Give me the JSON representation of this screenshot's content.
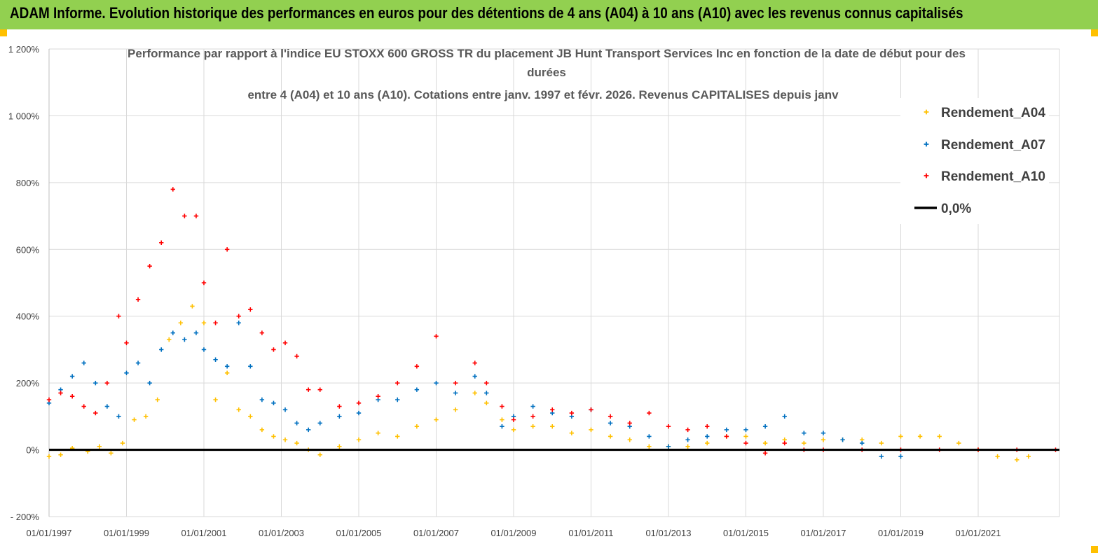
{
  "banner": {
    "title": "ADAM Informe. Evolution historique des performances en euros pour des détentions de 4 ans (A04) à 10 ans (A10) avec les revenus connus capitalisés"
  },
  "chart_data": {
    "type": "scatter",
    "title_lines": [
      "Performance par rapport à l'indice EU STOXX 600 GROSS TR  du placement JB Hunt Transport Services  Inc en  fonction de la date de début pour des",
      "durées",
      "entre 4 (A04) et 10 ans (A10).  Cotations entre janv. 1997 et févr.  2026. Revenus CAPITALISES depuis janv"
    ],
    "xlabel": "",
    "ylabel": "",
    "xlim": [
      1997.0,
      2023.1
    ],
    "ylim": [
      -200,
      1200
    ],
    "y_ticks": [
      -200,
      0,
      200,
      400,
      600,
      800,
      1000,
      1200
    ],
    "y_tick_labels": [
      "- 200%",
      "0%",
      "200%",
      "400%",
      "600%",
      "800%",
      "1 000%",
      "1 200%"
    ],
    "x_ticks": [
      1997,
      1999,
      2001,
      2003,
      2005,
      2007,
      2009,
      2011,
      2013,
      2015,
      2017,
      2019,
      2021
    ],
    "x_tick_labels": [
      "01/01/1997",
      "01/01/1999",
      "01/01/2001",
      "01/01/2003",
      "01/01/2005",
      "01/01/2007",
      "01/01/2009",
      "01/01/2011",
      "01/01/2013",
      "01/01/2015",
      "01/01/2017",
      "01/01/2019",
      "01/01/2021"
    ],
    "legend_position": "right",
    "series": [
      {
        "name": "Rendement_A04",
        "color": "#ffc000",
        "marker": "plus",
        "x": [
          1997.0,
          1997.3,
          1997.6,
          1998.0,
          1998.3,
          1998.6,
          1998.9,
          1999.2,
          1999.5,
          1999.8,
          2000.1,
          2000.4,
          2000.7,
          2001.0,
          2001.3,
          2001.6,
          2001.9,
          2002.2,
          2002.5,
          2002.8,
          2003.1,
          2003.4,
          2003.7,
          2004.0,
          2004.5,
          2005.0,
          2005.5,
          2006.0,
          2006.5,
          2007.0,
          2007.5,
          2008.0,
          2008.3,
          2008.7,
          2009.0,
          2009.5,
          2010.0,
          2010.5,
          2011.0,
          2011.5,
          2012.0,
          2012.5,
          2013.0,
          2013.5,
          2014.0,
          2014.5,
          2015.0,
          2015.5,
          2016.0,
          2016.5,
          2017.0,
          2017.5,
          2018.0,
          2018.5,
          2019.0,
          2019.5,
          2020.0,
          2020.5,
          2021.0,
          2021.5,
          2022.0,
          2022.3
        ],
        "y": [
          -20,
          -15,
          5,
          -5,
          10,
          -10,
          20,
          90,
          100,
          150,
          330,
          380,
          430,
          380,
          150,
          230,
          120,
          100,
          60,
          40,
          30,
          20,
          0,
          -15,
          10,
          30,
          50,
          40,
          70,
          90,
          120,
          170,
          140,
          90,
          60,
          70,
          70,
          50,
          60,
          40,
          30,
          10,
          10,
          10,
          20,
          40,
          40,
          20,
          30,
          20,
          30,
          30,
          30,
          20,
          40,
          40,
          40,
          20,
          0,
          -20,
          -30,
          -20
        ]
      },
      {
        "name": "Rendement_A07",
        "color": "#0070c0",
        "marker": "plus",
        "x": [
          1997.0,
          1997.3,
          1997.6,
          1997.9,
          1998.2,
          1998.5,
          1998.8,
          1999.0,
          1999.3,
          1999.6,
          1999.9,
          2000.2,
          2000.5,
          2000.8,
          2001.0,
          2001.3,
          2001.6,
          2001.9,
          2002.2,
          2002.5,
          2002.8,
          2003.1,
          2003.4,
          2003.7,
          2004.0,
          2004.5,
          2005.0,
          2005.5,
          2006.0,
          2006.5,
          2007.0,
          2007.5,
          2008.0,
          2008.3,
          2008.7,
          2009.0,
          2009.5,
          2010.0,
          2010.5,
          2011.0,
          2011.5,
          2012.0,
          2012.5,
          2013.0,
          2013.5,
          2014.0,
          2014.5,
          2015.0,
          2015.5,
          2016.0,
          2016.5,
          2017.0,
          2017.5,
          2018.0,
          2018.5,
          2019.0
        ],
        "y": [
          140,
          180,
          220,
          260,
          200,
          130,
          100,
          230,
          260,
          200,
          300,
          350,
          330,
          350,
          300,
          270,
          250,
          380,
          250,
          150,
          140,
          120,
          80,
          60,
          80,
          100,
          110,
          150,
          150,
          180,
          200,
          170,
          220,
          170,
          70,
          100,
          130,
          110,
          100,
          120,
          80,
          70,
          40,
          10,
          30,
          40,
          60,
          60,
          70,
          100,
          50,
          50,
          30,
          20,
          -20,
          -20
        ]
      },
      {
        "name": "Rendement_A10",
        "color": "#ff0000",
        "marker": "plus",
        "x": [
          1997.0,
          1997.3,
          1997.6,
          1997.9,
          1998.2,
          1998.5,
          1998.8,
          1999.0,
          1999.3,
          1999.6,
          1999.9,
          2000.2,
          2000.5,
          2000.8,
          2001.0,
          2001.3,
          2001.6,
          2001.9,
          2002.2,
          2002.5,
          2002.8,
          2003.1,
          2003.4,
          2003.7,
          2004.0,
          2004.5,
          2005.0,
          2005.5,
          2006.0,
          2006.5,
          2007.0,
          2007.5,
          2008.0,
          2008.3,
          2008.7,
          2009.0,
          2009.5,
          2010.0,
          2010.5,
          2011.0,
          2011.5,
          2012.0,
          2012.5,
          2013.0,
          2013.5,
          2014.0,
          2014.5,
          2015.0,
          2015.5,
          2016.0,
          2016.5,
          2017.0,
          2018.0,
          2019.0,
          2020.0,
          2021.0,
          2022.0,
          2023.0
        ],
        "y": [
          150,
          170,
          160,
          130,
          110,
          200,
          400,
          320,
          450,
          550,
          620,
          780,
          700,
          700,
          500,
          380,
          600,
          400,
          420,
          350,
          300,
          320,
          280,
          180,
          180,
          130,
          140,
          160,
          200,
          250,
          340,
          200,
          260,
          200,
          130,
          90,
          100,
          120,
          110,
          120,
          100,
          80,
          110,
          70,
          60,
          70,
          40,
          20,
          -10,
          20,
          0,
          0,
          0,
          0,
          0,
          0,
          0,
          0
        ]
      },
      {
        "name": "0,0%",
        "color": "#000000",
        "marker": "line",
        "x": [
          1997.0,
          2023.1
        ],
        "y": [
          0,
          0
        ]
      }
    ]
  }
}
